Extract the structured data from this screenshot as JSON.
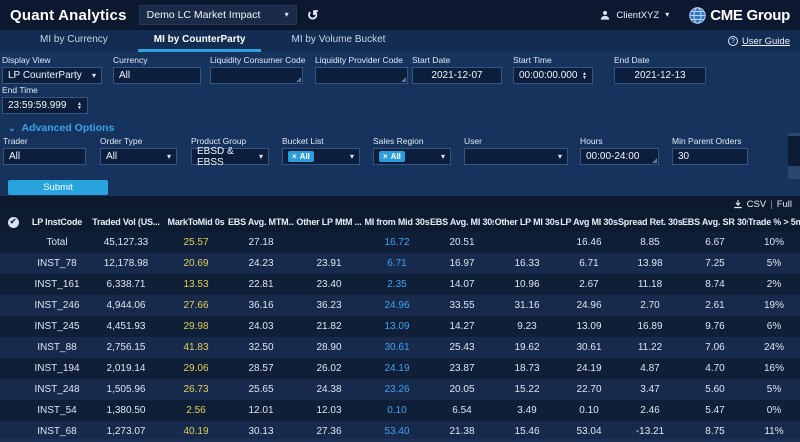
{
  "header": {
    "app_title": "Quant Analytics",
    "dashboard_select": "Demo LC Market Impact",
    "username": "ClientXYZ",
    "brand": "CME Group"
  },
  "tabs": [
    {
      "label": "MI by Currency",
      "active": false
    },
    {
      "label": "MI by CounterParty",
      "active": true
    },
    {
      "label": "MI by Volume Bucket",
      "active": false
    }
  ],
  "user_guide_label": "User Guide",
  "filters": {
    "display_view": {
      "label": "Display View",
      "value": "LP CounterParty"
    },
    "currency": {
      "label": "Currency",
      "value": "All"
    },
    "liquidity_consumer_code": {
      "label": "Liquidity Consumer Code",
      "value": ""
    },
    "liquidity_provider_code": {
      "label": "Liquidity Provider Code",
      "value": ""
    },
    "start_date": {
      "label": "Start Date",
      "value": "2021-12-07"
    },
    "start_time": {
      "label": "Start Time",
      "value": "00:00:00.000"
    },
    "end_date": {
      "label": "End Date",
      "value": "2021-12-13"
    },
    "end_time": {
      "label": "End Time",
      "value": "23:59:59.999"
    }
  },
  "advanced": {
    "title": "Advanced Options",
    "trader": {
      "label": "Trader",
      "value": "All"
    },
    "order_type": {
      "label": "Order Type",
      "value": "All"
    },
    "product_group": {
      "label": "Product Group",
      "value": "EBSD & EBSS"
    },
    "bucket_list": {
      "label": "Bucket List",
      "chip": "All"
    },
    "sales_region": {
      "label": "Sales Region",
      "chip": "All"
    },
    "user": {
      "label": "User",
      "value": ""
    },
    "hours": {
      "label": "Hours",
      "value": "00:00-24:00"
    },
    "min_parent_orders": {
      "label": "Min Parent Orders",
      "value": "30"
    }
  },
  "submit_label": "Submit",
  "export": {
    "csv": "CSV",
    "full": "Full"
  },
  "table": {
    "columns": [
      "LP InstCode",
      "Traded Vol (US...",
      "MarkToMid 0s",
      "EBS Avg. MTM...",
      "Other LP MtM ...",
      "MI from Mid 30s",
      "EBS Avg. MI 30s",
      "Other LP MI 30s",
      "LP Avg MI 30s",
      "Spread Ret. 30s",
      "EBS Avg. SR 30s",
      "Trade % > 5m"
    ],
    "rows": [
      [
        "Total",
        "45,127.33",
        "25.57",
        "27.18",
        "",
        "16.72",
        "20.51",
        "",
        "16.46",
        "8.85",
        "6.67",
        "10%"
      ],
      [
        "INST_78",
        "12,178.98",
        "20.69",
        "24.23",
        "23.91",
        "6.71",
        "16.97",
        "16.33",
        "6.71",
        "13.98",
        "7.25",
        "5%"
      ],
      [
        "INST_161",
        "6,338.71",
        "13.53",
        "22.81",
        "23.40",
        "2.35",
        "14.07",
        "10.96",
        "2.67",
        "11.18",
        "8.74",
        "2%"
      ],
      [
        "INST_246",
        "4,944.06",
        "27.66",
        "36.16",
        "36.23",
        "24.96",
        "33.55",
        "31.16",
        "24.96",
        "2.70",
        "2.61",
        "19%"
      ],
      [
        "INST_245",
        "4,451.93",
        "29.98",
        "24.03",
        "21.82",
        "13.09",
        "14.27",
        "9.23",
        "13.09",
        "16.89",
        "9.76",
        "6%"
      ],
      [
        "INST_88",
        "2,756.15",
        "41.83",
        "32.50",
        "28.90",
        "30.61",
        "25.43",
        "19.62",
        "30.61",
        "11.22",
        "7.06",
        "24%"
      ],
      [
        "INST_194",
        "2,019.14",
        "29.06",
        "28.57",
        "26.02",
        "24.19",
        "23.87",
        "18.73",
        "24.19",
        "4.87",
        "4.70",
        "16%"
      ],
      [
        "INST_248",
        "1,505.96",
        "26.73",
        "25.65",
        "24.38",
        "23.26",
        "20.05",
        "15.22",
        "22.70",
        "3.47",
        "5.60",
        "5%"
      ],
      [
        "INST_54",
        "1,380.50",
        "2.56",
        "12.01",
        "12.03",
        "0.10",
        "6.54",
        "3.49",
        "0.10",
        "2.46",
        "5.47",
        "0%"
      ],
      [
        "INST_68",
        "1,273.07",
        "40.19",
        "30.13",
        "27.36",
        "53.40",
        "21.38",
        "15.46",
        "53.04",
        "-13.21",
        "8.75",
        "11%"
      ]
    ]
  },
  "colors": {
    "accent_blue": "#2d9cdb",
    "link_blue": "#3da1e8",
    "value_yellow": "#e3cf57",
    "value_blue": "#41a0f0",
    "panel_bg": "#16335d",
    "topbar_bg": "#0c1830"
  }
}
